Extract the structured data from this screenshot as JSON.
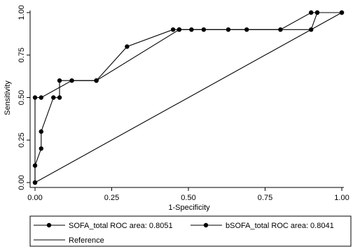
{
  "chart_data": {
    "type": "line",
    "xlabel": "1-Specificity",
    "ylabel": "Sensitivity",
    "xlim": [
      0,
      1
    ],
    "ylim": [
      0,
      1
    ],
    "x_ticks": [
      "0.00",
      "0.25",
      "0.50",
      "0.75",
      "1.00"
    ],
    "y_ticks": [
      "0.00",
      "0.25",
      "0.50",
      "0.75",
      "1.00"
    ],
    "grid": false,
    "legend_position": "bottom",
    "series": [
      {
        "name": "SOFA_total ROC area: 0.8051",
        "markers": true,
        "points": [
          [
            0,
            0
          ],
          [
            0,
            0.1
          ],
          [
            0.02,
            0.2
          ],
          [
            0.02,
            0.3
          ],
          [
            0.06,
            0.5
          ],
          [
            0.08,
            0.5
          ],
          [
            0.08,
            0.6
          ],
          [
            0.2,
            0.6
          ],
          [
            0.3,
            0.8
          ],
          [
            0.45,
            0.9
          ],
          [
            0.47,
            0.9
          ],
          [
            0.51,
            0.9
          ],
          [
            0.55,
            0.9
          ],
          [
            0.63,
            0.9
          ],
          [
            0.69,
            0.9
          ],
          [
            0.9,
            0.9
          ],
          [
            0.92,
            1
          ],
          [
            1,
            1
          ]
        ]
      },
      {
        "name": "bSOFA_total ROC area: 0.8041",
        "markers": true,
        "points": [
          [
            0,
            0
          ],
          [
            0,
            0.5
          ],
          [
            0.02,
            0.5
          ],
          [
            0.12,
            0.6
          ],
          [
            0.2,
            0.6
          ],
          [
            0.47,
            0.9
          ],
          [
            0.8,
            0.9
          ],
          [
            0.9,
            1
          ],
          [
            0.92,
            1
          ],
          [
            1,
            1
          ]
        ]
      },
      {
        "name": "Reference",
        "markers": false,
        "points": [
          [
            0,
            0
          ],
          [
            1,
            1
          ]
        ]
      }
    ]
  }
}
